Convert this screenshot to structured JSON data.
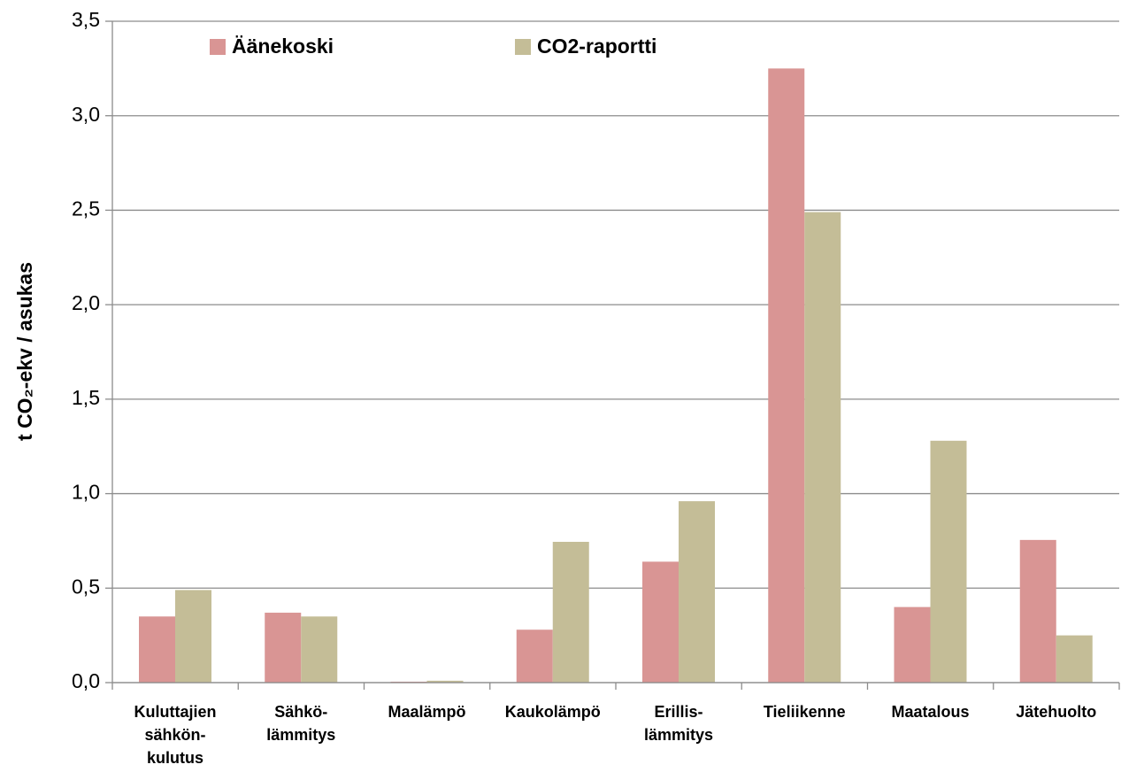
{
  "chart_data": {
    "type": "bar",
    "y_label": "t CO₂-ekv / asukas",
    "categories": [
      "Kuluttajien\nsähkön-\nkulutus",
      "Sähkö-\nlämmitys",
      "Maalämpö",
      "Kaukolämpö",
      "Erillis-\nlämmitys",
      "Tieliikenne",
      "Maatalous",
      "Jätehuolto"
    ],
    "series": [
      {
        "name": "Äänekoski",
        "color": "#d99594",
        "values": [
          0.35,
          0.37,
          0.005,
          0.28,
          0.64,
          3.25,
          0.4,
          0.755
        ]
      },
      {
        "name": "CO2-raportti",
        "color": "#c4bd97",
        "values": [
          0.49,
          0.35,
          0.01,
          0.745,
          0.96,
          2.49,
          1.28,
          0.25
        ]
      }
    ],
    "ylim": [
      0,
      3.5
    ],
    "yticks": [
      {
        "value": 0,
        "label": "0,0"
      },
      {
        "value": 0.5,
        "label": "0,5"
      },
      {
        "value": 1,
        "label": "1,0"
      },
      {
        "value": 1.5,
        "label": "1,5"
      },
      {
        "value": 2,
        "label": "2,0"
      },
      {
        "value": 2.5,
        "label": "2,5"
      },
      {
        "value": 3,
        "label": "3,0"
      },
      {
        "value": 3.5,
        "label": "3,5"
      }
    ],
    "grid": true
  }
}
